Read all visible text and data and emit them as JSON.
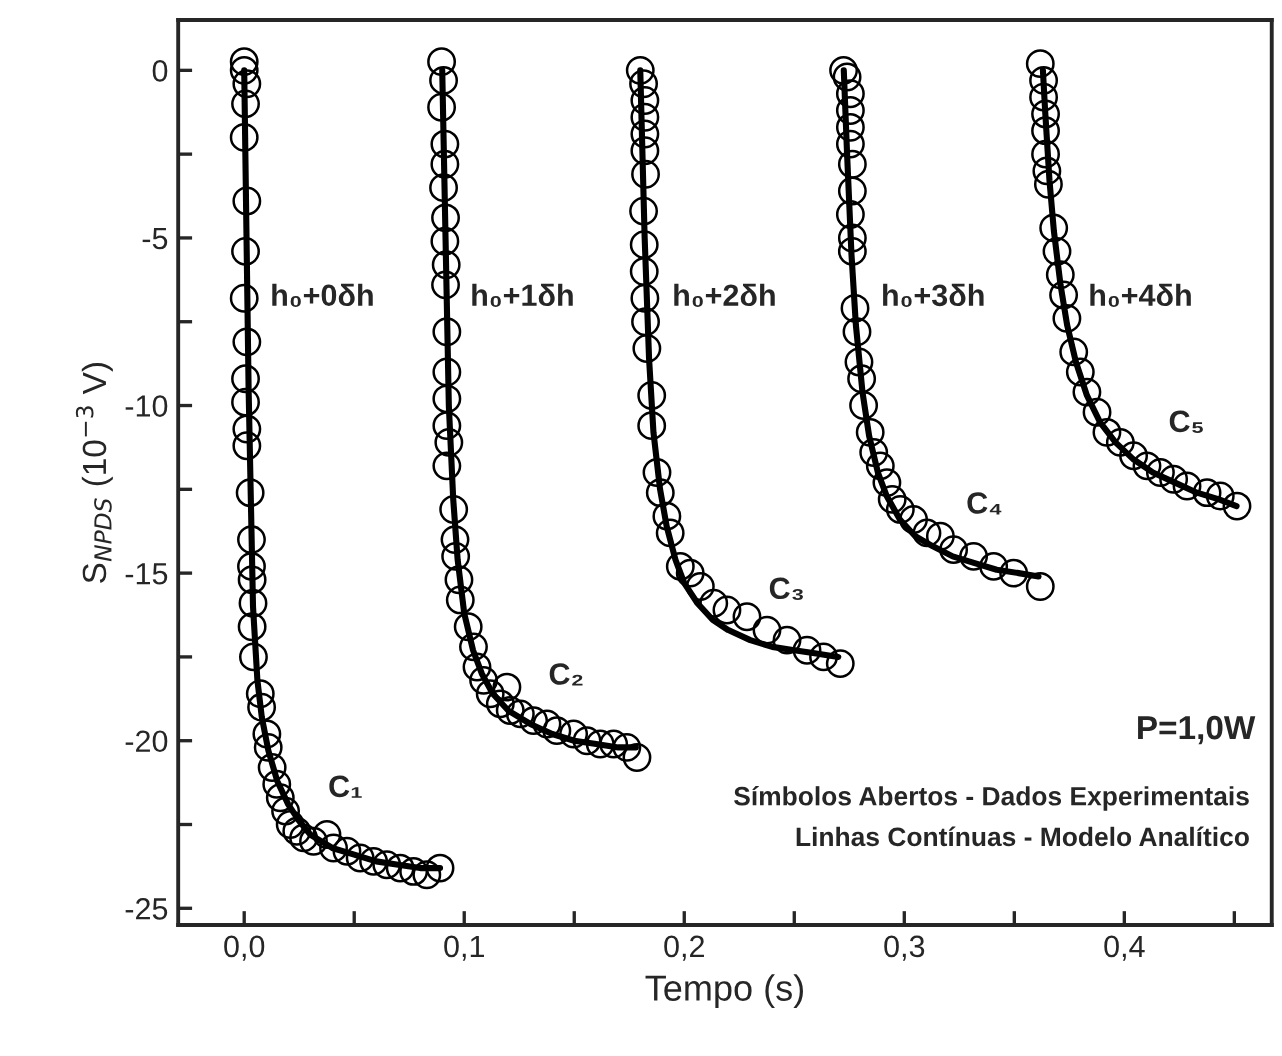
{
  "chart_data": {
    "type": "scatter",
    "xlabel": "Tempo (s)",
    "ylabel": "S$_{NPDS}$ (10$^{−3}$ V)",
    "xlim": [
      -0.03,
      0.467
    ],
    "ylim": [
      -25.5,
      1.5
    ],
    "xticks": [
      {
        "value": 0,
        "label": "0,0"
      },
      {
        "value": 0.05,
        "label": null
      },
      {
        "value": 0.1,
        "label": "0,1"
      },
      {
        "value": 0.15,
        "label": null
      },
      {
        "value": 0.2,
        "label": "0,2"
      },
      {
        "value": 0.25,
        "label": null
      },
      {
        "value": 0.3,
        "label": "0,3"
      },
      {
        "value": 0.35,
        "label": null
      },
      {
        "value": 0.4,
        "label": "0,4"
      },
      {
        "value": 0.45,
        "label": null
      }
    ],
    "yticks": [
      0,
      {
        "value": -2.5,
        "label": null
      },
      -5,
      {
        "value": -7.5,
        "label": null
      },
      -10,
      {
        "value": -12.5,
        "label": null
      },
      -15,
      {
        "value": -17.5,
        "label": null
      },
      -20,
      {
        "value": -22.5,
        "label": null
      },
      -25
    ],
    "grid": false,
    "legend": false,
    "series": [
      {
        "name": "h₀+0δh",
        "marker": "circle",
        "color": "#000000",
        "x": [
          0.0,
          0.0,
          0.0012,
          0.0006,
          0.0,
          0.0012,
          0.0006,
          0.0,
          0.0012,
          0.0006,
          0.0006,
          0.0012,
          0.0012,
          0.0027,
          0.0033,
          0.0033,
          0.0036,
          0.004,
          0.0036,
          0.0042,
          0.0073,
          0.0079,
          0.0103,
          0.0109,
          0.0127,
          0.0148,
          0.0164,
          0.0188,
          0.0209,
          0.0239,
          0.027,
          0.0315,
          0.0376,
          0.0406,
          0.0467,
          0.0527,
          0.0588,
          0.0648,
          0.0709,
          0.077,
          0.083,
          0.089
        ],
        "values": [
          0.26,
          0.0,
          -0.4,
          -1.0,
          -2.0,
          -3.9,
          -5.4,
          -6.8,
          -8.1,
          -9.2,
          -9.9,
          -10.7,
          -11.2,
          -12.6,
          -14.0,
          -14.8,
          -15.2,
          -15.9,
          -16.6,
          -17.5,
          -18.6,
          -19.0,
          -19.8,
          -20.2,
          -20.8,
          -21.3,
          -21.7,
          -22.1,
          -22.5,
          -22.7,
          -22.9,
          -23.0,
          -22.8,
          -23.2,
          -23.3,
          -23.5,
          -23.6,
          -23.7,
          -23.8,
          -23.9,
          -24.0,
          -23.8
        ]
      },
      {
        "type": "line",
        "color": "#000000",
        "line_style": "solid",
        "x": [
          0.0,
          0.002,
          0.004,
          0.006,
          0.008,
          0.011,
          0.015,
          0.02,
          0.025,
          0.03,
          0.04,
          0.05,
          0.06,
          0.07,
          0.08,
          0.089
        ],
        "values": [
          0.0,
          -9.5,
          -16.0,
          -18.2,
          -19.3,
          -20.3,
          -21.2,
          -21.9,
          -22.4,
          -22.8,
          -23.2,
          -23.4,
          -23.6,
          -23.7,
          -23.8,
          -23.8
        ]
      },
      {
        "name": "h₀+1δh",
        "marker": "circle",
        "color": "#000000",
        "x": [
          0.0897,
          0.0906,
          0.0897,
          0.0912,
          0.0912,
          0.0906,
          0.0915,
          0.0912,
          0.0918,
          0.0915,
          0.0921,
          0.0921,
          0.0921,
          0.0921,
          0.093,
          0.0921,
          0.0952,
          0.0958,
          0.0961,
          0.0976,
          0.0982,
          0.1018,
          0.1042,
          0.1058,
          0.1088,
          0.1118,
          0.1164,
          0.1194,
          0.1209,
          0.1255,
          0.1315,
          0.1376,
          0.1421,
          0.1497,
          0.1558,
          0.1618,
          0.1679,
          0.1739,
          0.1785
        ],
        "values": [
          0.26,
          -0.3,
          -1.1,
          -2.2,
          -2.8,
          -3.5,
          -4.4,
          -5.1,
          -5.8,
          -6.4,
          -7.8,
          -9.0,
          -9.8,
          -10.6,
          -11.1,
          -11.8,
          -13.1,
          -14.0,
          -14.5,
          -15.2,
          -15.8,
          -16.6,
          -17.2,
          -17.8,
          -18.2,
          -18.6,
          -18.9,
          -18.4,
          -19.1,
          -19.2,
          -19.4,
          -19.5,
          -19.7,
          -19.8,
          -20.0,
          -20.1,
          -20.1,
          -20.2,
          -20.5
        ]
      },
      {
        "type": "line",
        "color": "#000000",
        "line_style": "solid",
        "x": [
          0.09,
          0.0915,
          0.093,
          0.095,
          0.097,
          0.1,
          0.104,
          0.108,
          0.113,
          0.12,
          0.13,
          0.14,
          0.15,
          0.16,
          0.17,
          0.178
        ],
        "values": [
          0.0,
          -5.0,
          -10.0,
          -12.8,
          -14.6,
          -16.2,
          -17.3,
          -18.0,
          -18.6,
          -19.1,
          -19.5,
          -19.8,
          -20.0,
          -20.1,
          -20.2,
          -20.2
        ]
      },
      {
        "name": "h₀+2δh",
        "marker": "circle",
        "color": "#000000",
        "x": [
          0.18,
          0.1815,
          0.1821,
          0.1821,
          0.1821,
          0.1821,
          0.1824,
          0.1815,
          0.1818,
          0.1818,
          0.1821,
          0.1824,
          0.183,
          0.1852,
          0.1852,
          0.1876,
          0.1891,
          0.1921,
          0.1936,
          0.1982,
          0.2027,
          0.2073,
          0.2134,
          0.2194,
          0.2285,
          0.2376,
          0.2467,
          0.2558,
          0.2633,
          0.2709
        ],
        "values": [
          0.0,
          -0.4,
          -0.9,
          -1.4,
          -1.9,
          -2.4,
          -3.1,
          -4.2,
          -5.2,
          -6.0,
          -6.8,
          -7.5,
          -8.3,
          -9.7,
          -10.6,
          -12.0,
          -12.6,
          -13.3,
          -13.8,
          -14.8,
          -15.0,
          -15.4,
          -15.9,
          -16.1,
          -16.3,
          -16.7,
          -17.0,
          -17.3,
          -17.5,
          -17.7
        ]
      },
      {
        "type": "line",
        "color": "#000000",
        "line_style": "solid",
        "x": [
          0.18,
          0.182,
          0.184,
          0.186,
          0.189,
          0.192,
          0.196,
          0.2,
          0.206,
          0.213,
          0.22,
          0.23,
          0.24,
          0.25,
          0.26,
          0.27
        ],
        "values": [
          0.0,
          -5.0,
          -8.6,
          -10.8,
          -12.5,
          -13.6,
          -14.6,
          -15.3,
          -15.9,
          -16.4,
          -16.7,
          -17.0,
          -17.2,
          -17.3,
          -17.4,
          -17.5
        ]
      },
      {
        "name": "h₀+3δh",
        "marker": "circle",
        "color": "#000000",
        "x": [
          0.2724,
          0.274,
          0.2755,
          0.2755,
          0.2755,
          0.2755,
          0.2764,
          0.2764,
          0.2755,
          0.2764,
          0.2764,
          0.2776,
          0.2785,
          0.2794,
          0.2806,
          0.2815,
          0.2845,
          0.2861,
          0.2891,
          0.2921,
          0.2945,
          0.2982,
          0.3042,
          0.3103,
          0.3164,
          0.3224,
          0.3315,
          0.3406,
          0.3497,
          0.3618
        ],
        "values": [
          0.0,
          -0.2,
          -0.7,
          -1.2,
          -1.7,
          -2.2,
          -2.8,
          -3.6,
          -4.3,
          -5.0,
          -5.4,
          -7.1,
          -7.8,
          -8.7,
          -9.2,
          -10.0,
          -10.8,
          -11.4,
          -11.8,
          -12.3,
          -12.8,
          -13.1,
          -13.4,
          -13.8,
          -13.9,
          -14.3,
          -14.5,
          -14.8,
          -15.0,
          -15.4
        ]
      },
      {
        "type": "line",
        "color": "#000000",
        "line_style": "solid",
        "x": [
          0.2725,
          0.274,
          0.276,
          0.278,
          0.281,
          0.284,
          0.288,
          0.292,
          0.298,
          0.305,
          0.313,
          0.322,
          0.332,
          0.342,
          0.352,
          0.361
        ],
        "values": [
          0.0,
          -2.5,
          -5.5,
          -7.6,
          -9.6,
          -10.9,
          -12.0,
          -12.7,
          -13.4,
          -13.9,
          -14.2,
          -14.5,
          -14.7,
          -14.9,
          -15.0,
          -15.1
        ]
      },
      {
        "name": "h₀+4δh",
        "marker": "circle",
        "color": "#000000",
        "x": [
          0.3618,
          0.3633,
          0.3633,
          0.3642,
          0.3642,
          0.3642,
          0.3648,
          0.3655,
          0.3679,
          0.3694,
          0.3709,
          0.3724,
          0.3739,
          0.377,
          0.38,
          0.383,
          0.3876,
          0.3921,
          0.3982,
          0.4042,
          0.4103,
          0.4164,
          0.4224,
          0.4285,
          0.4376,
          0.4436,
          0.4512
        ],
        "values": [
          0.2,
          -0.3,
          -0.8,
          -1.3,
          -1.8,
          -2.5,
          -3.0,
          -3.4,
          -4.7,
          -5.4,
          -6.1,
          -6.7,
          -7.4,
          -8.4,
          -9.0,
          -9.6,
          -10.2,
          -10.8,
          -11.1,
          -11.5,
          -11.8,
          -12.0,
          -12.2,
          -12.4,
          -12.6,
          -12.7,
          -13.0
        ]
      },
      {
        "type": "line",
        "color": "#000000",
        "line_style": "solid",
        "x": [
          0.363,
          0.364,
          0.366,
          0.368,
          0.371,
          0.374,
          0.378,
          0.383,
          0.389,
          0.396,
          0.404,
          0.413,
          0.423,
          0.433,
          0.443,
          0.451
        ],
        "values": [
          0.0,
          -1.2,
          -3.3,
          -4.8,
          -6.4,
          -7.6,
          -8.7,
          -9.7,
          -10.5,
          -11.1,
          -11.6,
          -12.0,
          -12.3,
          -12.6,
          -12.8,
          -13.0
        ]
      }
    ],
    "annotations": [
      "C₁",
      "C₂",
      "C₃",
      "C₄",
      "C₅",
      "P=1,0W",
      "Símbolos Abertos - Dados Experimentais",
      "Linhas Contínuas - Modelo Analítico"
    ]
  }
}
